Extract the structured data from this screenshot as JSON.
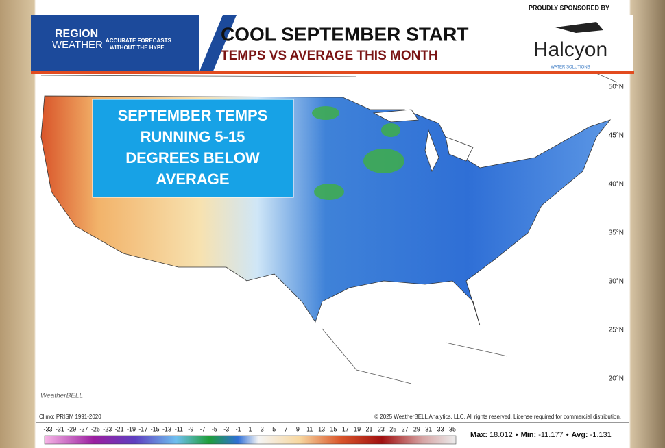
{
  "header": {
    "logo_line1": "REGION",
    "logo_line2": "WEATHER",
    "tagline": [
      "ACCURATE FORECASTS",
      "WITHOUT THE HYPE."
    ],
    "title": "COOL SEPTEMBER START",
    "subtitle": "TEMPS VS AVERAGE THIS MONTH"
  },
  "sponsor": {
    "label": "PROUDLY SPONSORED BY",
    "name": "Halcyon",
    "tagline": "WATER SOLUTIONS"
  },
  "callout": {
    "lines": [
      "SEPTEMBER TEMPS",
      "RUNNING 5-15",
      "DEGREES BELOW",
      "AVERAGE"
    ]
  },
  "map": {
    "latitude_labels": [
      "50°N",
      "45°N",
      "40°N",
      "35°N",
      "30°N",
      "25°N",
      "20°N"
    ],
    "watermark": "WeatherBELL",
    "climo": "Climo: PRISM 1991-2020",
    "copyright": "© 2025 WeatherBELL Analytics, LLC. All rights reserved. License required for commercial distribution."
  },
  "legend": {
    "ticks": [
      -33,
      -31,
      -29,
      -27,
      -25,
      -23,
      -21,
      -19,
      -17,
      -15,
      -13,
      -11,
      -9,
      -7,
      -5,
      -3,
      -1,
      1,
      3,
      5,
      7,
      9,
      11,
      13,
      15,
      17,
      19,
      21,
      23,
      25,
      27,
      29,
      31,
      33,
      35
    ],
    "stats": [
      {
        "label": "Max:",
        "value": 18.012
      },
      {
        "label": "Min:",
        "value": -11.177
      },
      {
        "label": "Avg:",
        "value": -1.131
      }
    ],
    "separator": "•"
  }
}
